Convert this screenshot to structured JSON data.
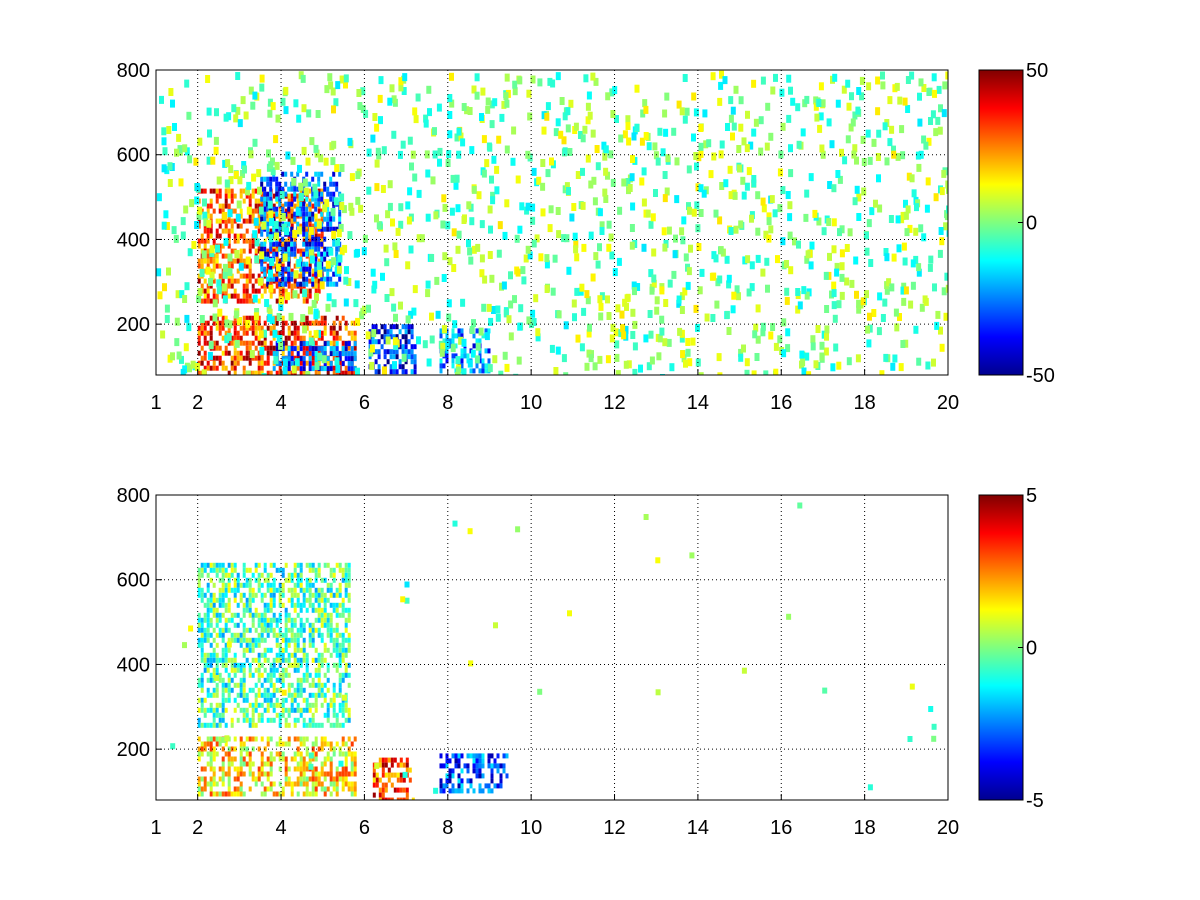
{
  "chart_data": [
    {
      "type": "heatmap",
      "title": "",
      "xlabel": "",
      "ylabel": "",
      "xlim": [
        1,
        20
      ],
      "ylim": [
        80,
        800
      ],
      "xticks": [
        1,
        2,
        4,
        6,
        8,
        10,
        12,
        14,
        16,
        18,
        20
      ],
      "yticks": [
        200,
        400,
        600,
        800
      ],
      "grid": true,
      "colormap": "jet",
      "clim": [
        -50,
        50
      ],
      "colorbar_ticks": [
        -50,
        0,
        50
      ],
      "features": [
        {
          "name": "lower band",
          "x": [
            2.0,
            5.8
          ],
          "y": [
            85,
            220
          ],
          "value": 32
        },
        {
          "name": "lower band negative part",
          "x": [
            3.8,
            5.8
          ],
          "y": [
            90,
            160
          ],
          "value": -28
        },
        {
          "name": "rising ridge positive",
          "x": [
            2.0,
            5.0
          ],
          "y": [
            260,
            520
          ],
          "value": 30
        },
        {
          "name": "rising ridge negative",
          "x": [
            3.5,
            5.4
          ],
          "y": [
            300,
            560
          ],
          "value": -30
        },
        {
          "name": "cluster near 7",
          "x": [
            6.1,
            7.2
          ],
          "y": [
            85,
            200
          ],
          "value": -35
        },
        {
          "name": "cluster near 8.5",
          "x": [
            7.8,
            9.0
          ],
          "y": [
            90,
            190
          ],
          "value": -25
        }
      ]
    },
    {
      "type": "heatmap",
      "title": "",
      "xlabel": "",
      "ylabel": "",
      "xlim": [
        1,
        20
      ],
      "ylim": [
        80,
        800
      ],
      "xticks": [
        1,
        2,
        4,
        6,
        8,
        10,
        12,
        14,
        16,
        18,
        20
      ],
      "yticks": [
        200,
        400,
        600,
        800
      ],
      "grid": true,
      "colormap": "jet",
      "clim": [
        -5,
        5
      ],
      "colorbar_ticks": [
        -5,
        0,
        5
      ],
      "features": [
        {
          "name": "rising ridge",
          "x": [
            2.0,
            5.6
          ],
          "y": [
            260,
            640
          ],
          "value": -0.5
        },
        {
          "name": "lower band",
          "x": [
            2.0,
            5.8
          ],
          "y": [
            90,
            230
          ],
          "value": 1.5
        },
        {
          "name": "cluster near 6.8",
          "x": [
            6.2,
            7.2
          ],
          "y": [
            85,
            180
          ],
          "value": 3
        },
        {
          "name": "cluster near 8.5",
          "x": [
            7.8,
            9.4
          ],
          "y": [
            100,
            190
          ],
          "value": -3
        }
      ]
    }
  ]
}
